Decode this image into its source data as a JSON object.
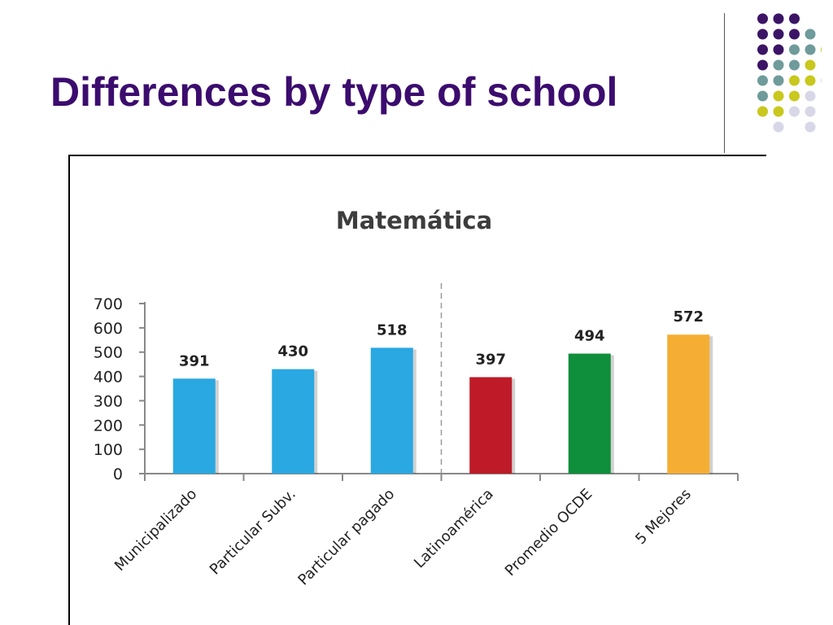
{
  "slide": {
    "title": "Differences by type of school"
  },
  "decoration": {
    "dot_colors": {
      "purple": "#3b1466",
      "teal": "#6f9b9b",
      "lime": "#c9c81e",
      "lavender": "#d7d7e8"
    },
    "dot_pattern": [
      [
        "",
        "purple",
        "purple",
        "purple",
        "",
        ""
      ],
      [
        "",
        "purple",
        "purple",
        "purple",
        "teal",
        ""
      ],
      [
        "",
        "purple",
        "purple",
        "teal",
        "teal",
        "lime"
      ],
      [
        "",
        "purple",
        "teal",
        "teal",
        "lime",
        ""
      ],
      [
        "",
        "teal",
        "teal",
        "lime",
        "lime",
        "lavender"
      ],
      [
        "",
        "teal",
        "lime",
        "lime",
        "lavender",
        ""
      ],
      [
        "",
        "lime",
        "lime",
        "lavender",
        "lavender",
        ""
      ],
      [
        "",
        "",
        "lavender",
        "",
        "lavender",
        ""
      ]
    ]
  },
  "chart_data": {
    "type": "bar",
    "title": "Matemática",
    "categories": [
      "Municipalizado",
      "Particular Subv.",
      "Particular pagado",
      "Latinoamérica",
      "Promedio OCDE",
      "5 Mejores"
    ],
    "values": [
      391,
      430,
      518,
      397,
      494,
      572
    ],
    "data_labels": [
      "391",
      "430",
      "518",
      "397",
      "494",
      "572"
    ],
    "colors": [
      "#29a8e2",
      "#29a8e2",
      "#29a8e2",
      "#be1a27",
      "#0f8e3b",
      "#f5ae33"
    ],
    "ylim": [
      0,
      700
    ],
    "yticks": [
      0,
      100,
      200,
      300,
      400,
      500,
      600,
      700
    ],
    "xlabel": "",
    "ylabel": "",
    "grid": false,
    "legend": "none",
    "separator_after_category": 2
  }
}
